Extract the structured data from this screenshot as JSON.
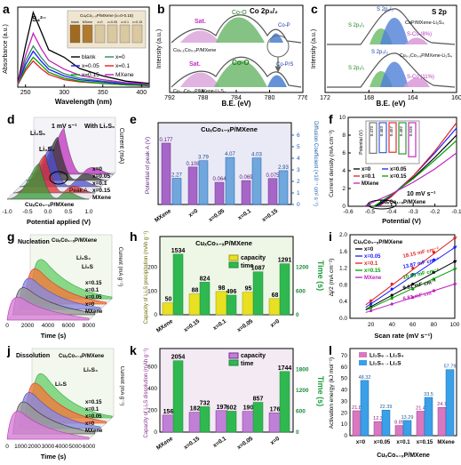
{
  "panels": {
    "a": {
      "letter": "a",
      "inset_title": "CuₓCo₁₋ₓP/MXene (x=0-0.15)",
      "inset_labels": [
        "blank",
        "MXene",
        "x=0",
        "x=0.05",
        "x=0.1",
        "x=0.15"
      ]
    },
    "b": {
      "letter": "b",
      "element": "Co 2p₃/₂",
      "peaks": [
        "Sat.",
        "Co-O",
        "Co-P",
        "Co-P/S"
      ],
      "samples": [
        "Cu₀.₁Co₀.₉P/MXene",
        "Cu₀.₁Co₀.₉P/MXene-Li₂S₄"
      ]
    },
    "c": {
      "letter": "c",
      "element": "S 2p",
      "sample_top": "CoP/MXene-Li₂S₄",
      "sample_bottom": "Cu₀.₁Co₀.₉P/MXene-Li₂S₄",
      "peaks": [
        "S 2p₃/₂",
        "S 2p₁/₂",
        "S-Co (8%)",
        "S-Co (11%)"
      ]
    },
    "d": {
      "letter": "d",
      "scan": "1 mV s⁻¹",
      "with_label": "With Li₂S₆",
      "species": [
        "Li₂S₆",
        "Li₂S₄"
      ],
      "peak": "Peak A",
      "series": [
        "x=0",
        "x=0.05",
        "x=0.1",
        "x=0.15",
        "MXene"
      ],
      "caption": "CuₓCo₁₋ₓP/MXene"
    },
    "e": {
      "letter": "e",
      "title": "CuₓCo₁₋ₓP/MXene",
      "annotation": "Dᴬ"
    },
    "f": {
      "letter": "f",
      "scan": "10 mV s⁻¹",
      "caption": "CuₓCo₁₋ₓP/MXene",
      "inset_values": [
        "0.473",
        "0.463",
        "0.457",
        "0.482",
        "0.526"
      ]
    },
    "g": {
      "letter": "g",
      "title": "Nucleation",
      "caption": "CuₓCo₁₋ₓP/MXene",
      "species": [
        "Li₂S₄",
        "Li₂S"
      ],
      "series": [
        "x=0.15",
        "x=0.1",
        "x=0.05",
        "x=0",
        "MXene"
      ]
    },
    "h": {
      "letter": "h",
      "title": "CuₓCo₁₋ₓP/MXene",
      "legend": [
        "capacity",
        "time"
      ]
    },
    "i": {
      "letter": "i",
      "title": "CuₓCo₁₋ₓP/MXene",
      "series": [
        "x=0",
        "x=0.05",
        "x=0.1",
        "x=0.15",
        "MXene"
      ],
      "slopes": [
        "18.15 mF cm⁻²",
        "13.87 mF cm⁻²",
        "10.85 mF cm⁻²",
        "9.61 mF cm⁻²",
        "6.83 mF cm⁻²"
      ]
    },
    "j": {
      "letter": "j",
      "title": "Dissolution",
      "caption": "CuₓCo₁₋ₓP/MXene",
      "species": [
        "Li₂S₄",
        "Li₂S"
      ],
      "series": [
        "x=0.15",
        "x=0.1",
        "x=0.05",
        "x=0",
        "MXene"
      ]
    },
    "k": {
      "letter": "k",
      "legend": [
        "capacity",
        "time"
      ]
    },
    "l": {
      "letter": "l",
      "legend": [
        "Li₂S₈→Li₂S₄",
        "Li₂S₄→Li₂S"
      ],
      "caption": "CuₓCo₁₋ₓP/MXene"
    }
  },
  "chart_data": [
    {
      "id": "a",
      "type": "line",
      "xlabel": "Wavelength (nm)",
      "ylabel": "Absorbance (a.u.)",
      "xlim": [
        250,
        400
      ],
      "xticks": [
        250,
        300,
        350,
        400
      ],
      "peak_label": "S₄²⁻",
      "series": [
        {
          "name": "blank",
          "color": "#000000",
          "x": [
            240,
            250,
            260,
            270,
            280,
            300,
            320,
            350,
            380,
            410
          ],
          "y": [
            0.05,
            0.55,
            1.0,
            0.75,
            0.5,
            0.4,
            0.25,
            0.15,
            0.08,
            0.05
          ]
        },
        {
          "name": "x=0",
          "color": "#2e8b57",
          "x": [
            240,
            250,
            260,
            270,
            280,
            300,
            320,
            350,
            380,
            410
          ],
          "y": [
            0.04,
            0.35,
            0.55,
            0.4,
            0.28,
            0.18,
            0.12,
            0.08,
            0.05,
            0.03
          ]
        },
        {
          "name": "x=0.05",
          "color": "#1a1aff",
          "x": [
            240,
            250,
            260,
            270,
            280,
            300,
            320,
            350,
            380,
            410
          ],
          "y": [
            0.04,
            0.3,
            0.48,
            0.35,
            0.24,
            0.15,
            0.1,
            0.07,
            0.04,
            0.03
          ]
        },
        {
          "name": "x=0.1",
          "color": "#e02020",
          "x": [
            240,
            250,
            260,
            270,
            280,
            300,
            320,
            350,
            380,
            410
          ],
          "y": [
            0.03,
            0.22,
            0.35,
            0.25,
            0.17,
            0.1,
            0.07,
            0.05,
            0.03,
            0.02
          ]
        },
        {
          "name": "x=0.15",
          "color": "#00a000",
          "x": [
            240,
            250,
            260,
            270,
            280,
            300,
            320,
            350,
            380,
            410
          ],
          "y": [
            0.03,
            0.25,
            0.4,
            0.3,
            0.2,
            0.12,
            0.08,
            0.05,
            0.03,
            0.02
          ]
        },
        {
          "name": "MXene",
          "color": "#c020c0",
          "x": [
            240,
            250,
            260,
            270,
            280,
            300,
            320,
            350,
            380,
            410
          ],
          "y": [
            0.04,
            0.42,
            0.72,
            0.52,
            0.36,
            0.24,
            0.16,
            0.1,
            0.06,
            0.04
          ]
        }
      ]
    },
    {
      "id": "b",
      "type": "line",
      "xlabel": "B.E. (eV)",
      "ylabel": "Intensity (a.u.)",
      "xlim": [
        792,
        776
      ],
      "xticks": [
        792,
        788,
        784,
        780,
        776
      ]
    },
    {
      "id": "c",
      "type": "line",
      "xlabel": "B.E. (eV)",
      "ylabel": "Intensity (a.u.)",
      "xlim": [
        172,
        160
      ],
      "xticks": [
        172,
        168,
        164,
        160
      ]
    },
    {
      "id": "d",
      "type": "line",
      "xlabel": "Potential applied (V)",
      "ylabel": "Current (mA)",
      "xlim": [
        -1.0,
        1.0
      ],
      "xticks": [
        -1.0,
        -0.5,
        0.0,
        0.5,
        1.0
      ]
    },
    {
      "id": "e",
      "type": "bar",
      "categories": [
        "MXene",
        "x=0",
        "x=0.05",
        "x=0.1",
        "x=0.15"
      ],
      "ylabel": "Potential of peak A (V)",
      "y2label": "Diffusion Coefficient (×10⁻⁷ cm² s⁻¹)",
      "y2lim": [
        0,
        6
      ],
      "y2ticks": [
        0,
        1,
        2,
        3,
        4,
        5,
        6
      ],
      "series": [
        {
          "name": "potential",
          "values": [
            0.177,
            0.108,
            0.064,
            0.069,
            0.075
          ]
        },
        {
          "name": "diffusion",
          "values": [
            2.27,
            3.79,
            4.07,
            4.03,
            2.93
          ]
        }
      ]
    },
    {
      "id": "f",
      "type": "line",
      "xlabel": "Potential (V)",
      "ylabel": "Current density (mA cm⁻²)",
      "xlim": [
        -0.6,
        -0.1
      ],
      "ylim": [
        0,
        10
      ],
      "xticks": [
        -0.6,
        -0.5,
        -0.4,
        -0.3,
        -0.2,
        -0.1
      ],
      "yticks": [
        0,
        2,
        4,
        6,
        8,
        10
      ],
      "series": [
        {
          "name": "x=0",
          "color": "#000000",
          "x": [
            -0.473,
            -0.4,
            -0.3,
            -0.2,
            -0.1
          ],
          "y": [
            0,
            1.2,
            3.2,
            5.5,
            8.0
          ]
        },
        {
          "name": "x=0.05",
          "color": "#1a1aff",
          "x": [
            -0.463,
            -0.4,
            -0.3,
            -0.2,
            -0.1
          ],
          "y": [
            0,
            1.2,
            3.4,
            6.0,
            8.8
          ]
        },
        {
          "name": "x=0.1",
          "color": "#e02020",
          "x": [
            -0.457,
            -0.4,
            -0.3,
            -0.2,
            -0.1
          ],
          "y": [
            0,
            1.1,
            3.4,
            6.2,
            9.4
          ]
        },
        {
          "name": "x=0.15",
          "color": "#00a000",
          "x": [
            -0.482,
            -0.4,
            -0.3,
            -0.2,
            -0.1
          ],
          "y": [
            0,
            1.3,
            3.1,
            5.2,
            7.4
          ]
        },
        {
          "name": "MXene",
          "color": "#c020c0",
          "x": [
            -0.526,
            -0.4,
            -0.3,
            -0.2,
            -0.1
          ],
          "y": [
            0,
            1.4,
            2.7,
            4.2,
            6.0
          ]
        }
      ],
      "inset": {
        "ylabel": "Potential (V)",
        "categories": [
          "x=0",
          "x=0.05",
          "x=0.1",
          "x=0.15",
          "MXene"
        ],
        "values": [
          -0.473,
          -0.463,
          -0.457,
          -0.482,
          -0.526
        ]
      }
    },
    {
      "id": "g",
      "type": "line",
      "xlabel": "Time (s)",
      "ylabel": "Current (mA g⁻¹)",
      "xlim": [
        0,
        8000
      ],
      "xticks": [
        0,
        2000,
        4000,
        6000,
        8000
      ]
    },
    {
      "id": "h",
      "type": "bar",
      "categories": [
        "MXene",
        "x=0.15",
        "x=0.1",
        "x=0.05",
        "x=0"
      ],
      "ylabel": "Capacity of Li₂S precipitation (mAh g⁻¹)",
      "y2label": "Time (s)",
      "ylim": [
        0,
        300
      ],
      "yticks": [
        0,
        100,
        200
      ],
      "y2lim": [
        0,
        1500
      ],
      "y2ticks": [
        0,
        600,
        1200
      ],
      "series": [
        {
          "name": "capacity",
          "values": [
            50,
            88,
            98,
            95,
            68
          ]
        },
        {
          "name": "time",
          "values": [
            1534,
            824,
            496,
            1087,
            1291
          ]
        }
      ]
    },
    {
      "id": "i",
      "type": "scatter",
      "xlabel": "Scan rate (mV s⁻¹)",
      "ylabel": "Δj/2 (mA cm⁻²)",
      "xlim": [
        0,
        100
      ],
      "ylim": [
        0,
        2.0
      ],
      "xticks": [
        20,
        40,
        60,
        80,
        100
      ],
      "yticks": [
        0,
        0.4,
        0.8,
        1.2,
        1.6,
        2.0
      ],
      "series": [
        {
          "name": "x=0",
          "color": "#000000",
          "x": [
            20,
            40,
            60,
            80,
            100
          ],
          "y": [
            0.28,
            0.55,
            0.82,
            1.1,
            1.36
          ]
        },
        {
          "name": "x=0.05",
          "color": "#1a1aff",
          "x": [
            20,
            40,
            60,
            80,
            100
          ],
          "y": [
            0.35,
            0.7,
            1.05,
            1.4,
            1.7
          ]
        },
        {
          "name": "x=0.1",
          "color": "#e02020",
          "x": [
            20,
            40,
            60,
            80,
            100
          ],
          "y": [
            0.42,
            0.82,
            1.2,
            1.58,
            1.92
          ]
        },
        {
          "name": "x=0.15",
          "color": "#00a000",
          "x": [
            20,
            40,
            60,
            80,
            100
          ],
          "y": [
            0.25,
            0.48,
            0.7,
            0.94,
            1.18
          ]
        },
        {
          "name": "MXene",
          "color": "#c020c0",
          "x": [
            20,
            40,
            60,
            80,
            100
          ],
          "y": [
            0.18,
            0.34,
            0.5,
            0.66,
            0.82
          ]
        }
      ]
    },
    {
      "id": "j",
      "type": "line",
      "xlabel": "Time (s)",
      "ylabel": "Current (mA g⁻¹)",
      "xlim": [
        0,
        6000
      ],
      "xticks": [
        0,
        1000,
        2000,
        3000,
        4000,
        5000,
        6000
      ]
    },
    {
      "id": "k",
      "type": "bar",
      "categories": [
        "MXene",
        "x=0.15",
        "x=0.1",
        "x=0.05",
        "x=0"
      ],
      "ylabel": "Capacity of Li₂S dissolution (mAh g⁻¹)",
      "y2label": "Time (s)",
      "ylim": [
        0,
        700
      ],
      "yticks": [
        0,
        200,
        400,
        600
      ],
      "y2lim": [
        0,
        2100
      ],
      "y2ticks": [
        0,
        600,
        1200,
        1800
      ],
      "series": [
        {
          "name": "capacity",
          "values": [
            156,
            182,
            197,
            190,
            176
          ]
        },
        {
          "name": "time",
          "values": [
            2054,
            732,
            602,
            857,
            1744
          ]
        }
      ]
    },
    {
      "id": "l",
      "type": "bar",
      "categories": [
        "x=0",
        "x=0.05",
        "x=0.1",
        "x=0.15",
        "MXene"
      ],
      "ylabel": "Activation energy (kJ mol⁻¹)",
      "ylim": [
        0,
        70
      ],
      "yticks": [
        0,
        10,
        20,
        30,
        40,
        50,
        60,
        70
      ],
      "series": [
        {
          "name": "Li₂S₈→Li₂S₄",
          "values": [
            21.8,
            12.3,
            8.89,
            21.4,
            24.7
          ]
        },
        {
          "name": "Li₂S₄→Li₂S",
          "values": [
            48.32,
            22.39,
            13.29,
            33.5,
            57.79
          ]
        }
      ]
    }
  ]
}
